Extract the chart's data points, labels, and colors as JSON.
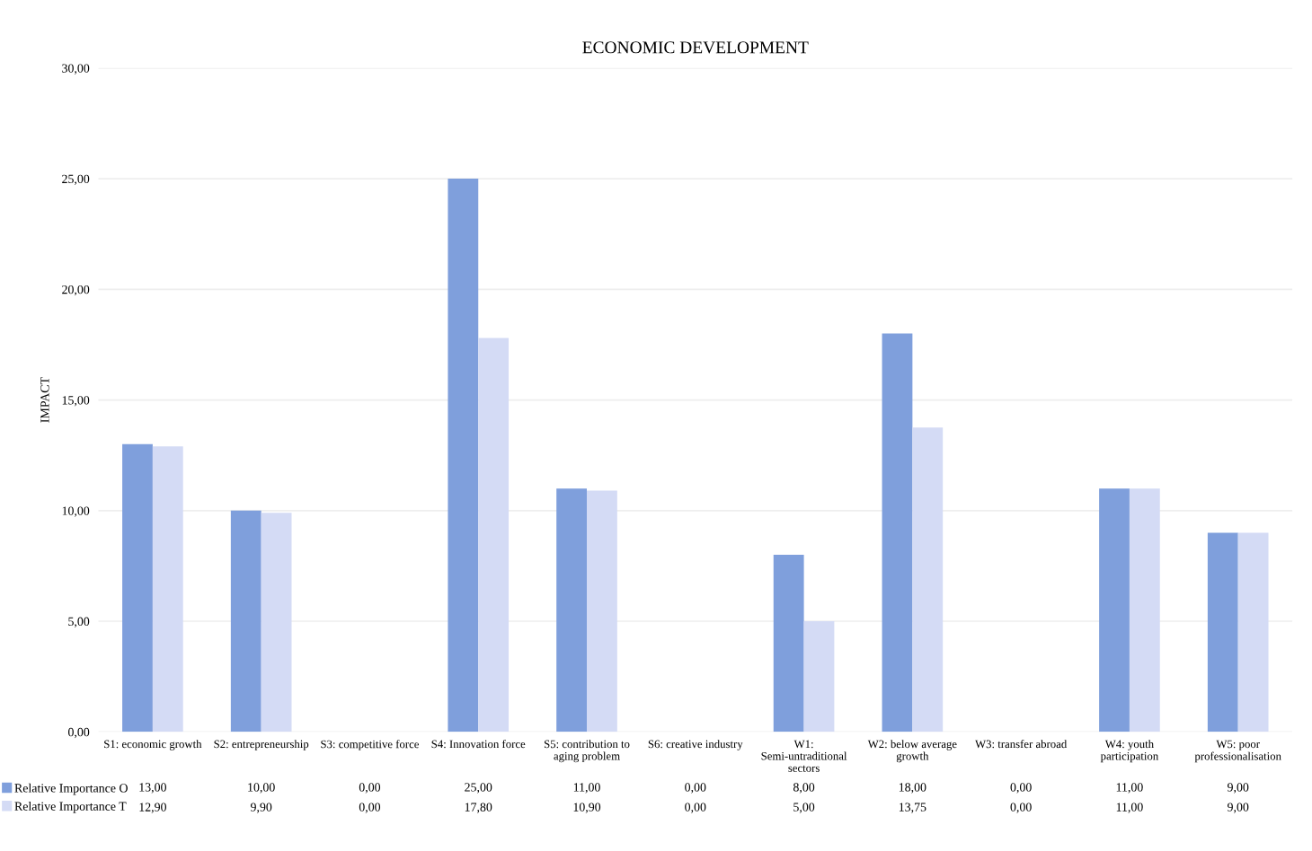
{
  "chart_data": {
    "type": "bar",
    "title": "ECONOMIC DEVELOPMENT",
    "ylabel": "IMPACT",
    "categories": [
      "S1: economic growth",
      "S2: entrepreneurship",
      "S3: competitive force",
      "S4: Innovation force",
      "S5: contribution to aging problem",
      "S6: creative industry",
      "W1: Semi-untraditional sectors",
      "W2: below average growth",
      "W3: transfer abroad",
      "W4: youth participation",
      "W5: poor professionalisation"
    ],
    "series": [
      {
        "name": "Relative Importance O",
        "color": "#7f9fdc",
        "values": [
          13,
          10,
          0,
          25,
          11,
          0,
          8,
          18,
          0,
          11,
          9
        ],
        "value_labels": [
          "13,00",
          "10,00",
          "0,00",
          "25,00",
          "11,00",
          "0,00",
          "8,00",
          "18,00",
          "0,00",
          "11,00",
          "9,00"
        ]
      },
      {
        "name": "Relative Importance T",
        "color": "#d4dbf5",
        "values": [
          12.9,
          9.9,
          0,
          17.8,
          10.9,
          0,
          5,
          13.75,
          0,
          11,
          9
        ],
        "value_labels": [
          "12,90",
          "9,90",
          "0,00",
          "17,80",
          "10,90",
          "0,00",
          "5,00",
          "13,75",
          "0,00",
          "11,00",
          "9,00"
        ]
      }
    ],
    "ylim": [
      0,
      30
    ],
    "yticks": [
      {
        "value": 0,
        "label": "0,00"
      },
      {
        "value": 5,
        "label": "5,00"
      },
      {
        "value": 10,
        "label": "10,00"
      },
      {
        "value": 15,
        "label": "15,00"
      },
      {
        "value": 20,
        "label": "20,00"
      },
      {
        "value": 25,
        "label": "25,00"
      },
      {
        "value": 30,
        "label": "30,00"
      }
    ],
    "grid": "y",
    "legend": "bottom"
  }
}
